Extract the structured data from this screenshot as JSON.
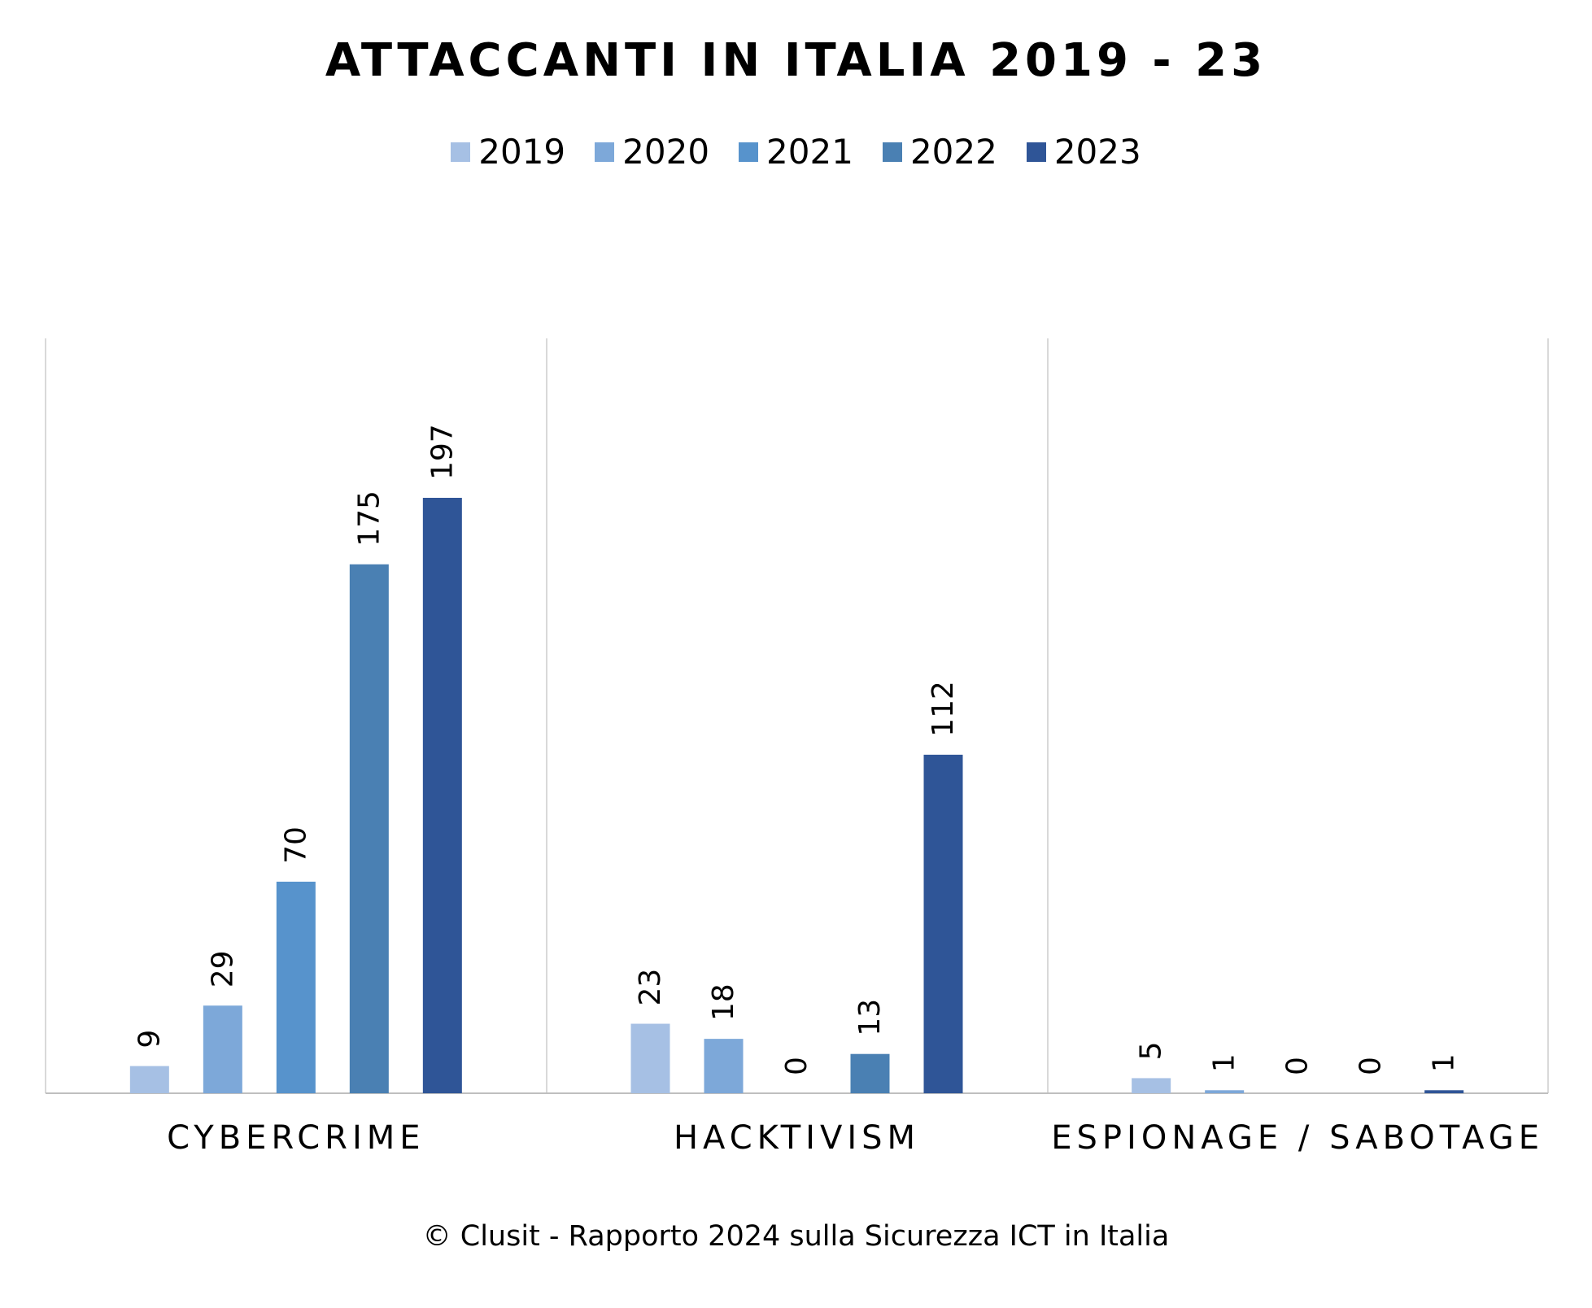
{
  "chart_data": {
    "type": "bar",
    "title": "ATTACCANTI IN ITALIA 2019 - 23",
    "categories": [
      "CYBERCRIME",
      "HACKTIVISM",
      "ESPIONAGE / SABOTAGE"
    ],
    "series": [
      {
        "name": "2019",
        "values": [
          9,
          23,
          5
        ],
        "color": "#A6C0E4"
      },
      {
        "name": "2020",
        "values": [
          29,
          18,
          1
        ],
        "color": "#7DA8D9"
      },
      {
        "name": "2021",
        "values": [
          70,
          0,
          0
        ],
        "color": "#5793CC"
      },
      {
        "name": "2022",
        "values": [
          175,
          13,
          0
        ],
        "color": "#4A80B3"
      },
      {
        "name": "2023",
        "values": [
          197,
          112,
          1
        ],
        "color": "#2F5597"
      }
    ],
    "ylim": [
      0,
      220
    ],
    "legend_position": "top",
    "grid": false,
    "category_separators": true
  },
  "footer": {
    "credit": "© Clusit - Rapporto 2024 sulla Sicurezza ICT in Italia"
  }
}
